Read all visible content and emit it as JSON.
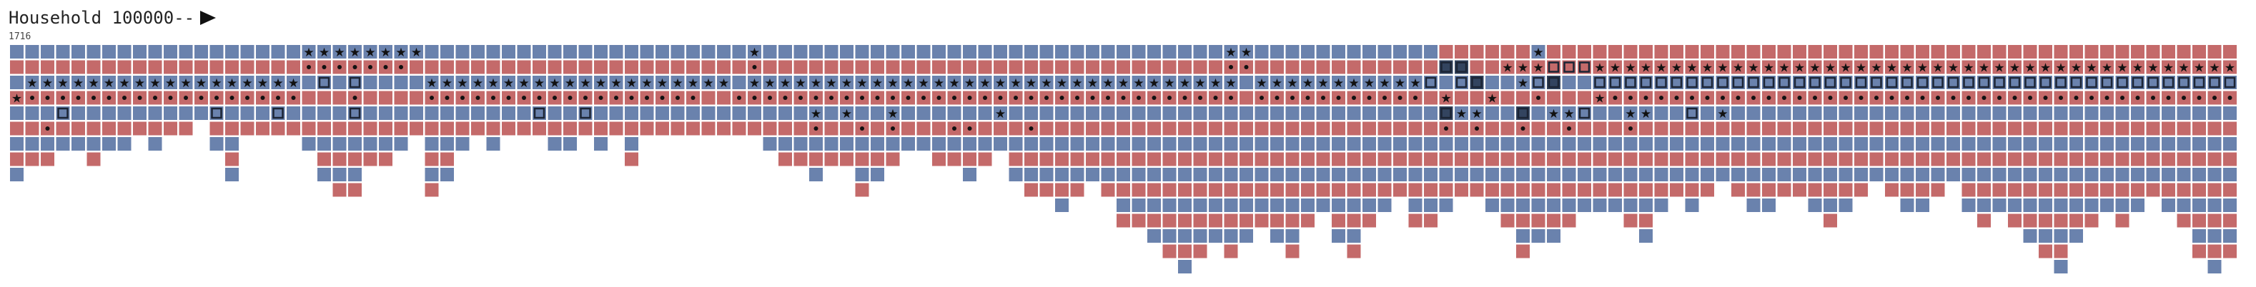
{
  "header": {
    "title": "Household 100000--",
    "year": "1716"
  },
  "palette": {
    "blue": "#6a82ad",
    "red": "#c46a6a",
    "dark": "#33445f",
    "glyph": "#111111"
  },
  "icons": {
    "star": "star-icon",
    "dot": "dot-icon",
    "square": "square-icon",
    "bar": "bar-icon",
    "arrow": "right-arrow-icon"
  },
  "legend_codes": {
    "b": "blue cell",
    "r": "red cell",
    "s": "star-marked cell",
    "d": "dot-marked cell",
    "q": "boxed cell",
    "k": "dark boxed cell",
    "l": "bar-marked cell"
  },
  "grid": {
    "rows": [
      "bbbbbbbbbbbbbbbbbbbssssssssbbbbbbbbbbbbbbbbbbbbbsbbbbbbbbbbbbbbbbbbbbbbbbbbbbbbssbbbbbbbbbbbbrrrrrrsrrrrrrrrrrrrrrrrrrrrrrrrrrrrrrrrrrrrrrrrrrrrrrrrrrrrrrrrrrrrrrrrrrrrrrrrr",
      "rrrrrrrrrrrrrrrrrrrdddddddrrrrrrrrrrrrrrrrrrrrrrdrrrrrrrrrrrrrrrrrrrrrrrrrrrrrrddrrrrrrrrrrrrkkrrsssqqqsssssssssssssssssssssssssssssssssssssssssssssssssssssssssssssss",
      "bssssssssssssssssssbqbqbbbbssssssssssssssssssssbssssssssssssssssssssssssssssssssbsssssssssssqbqkbbsqkbbqqqqqqqqqqqqqqqqqqqqqqqqqqqqqqqqqqqqqqqqqqqqqqqqqqqqqqqqqqqqqqqqqqq",
      "sddddddddddddddddddrrrdrrrrddddddddddddddddddrrdddddddddddddddddddddddddddddddddrdddddddddddrsrrsrrdrrrsdddddddddddddddddddddddddddddddddddddddddddddddddddddddddddddddddd",
      "bbbqbbbbbbbbbqbbbqbbbbqbbbbbbbbbbbqbbqbbbbbbbbbbbbbbsbsbbsbbbbbbsbbbbbbbbbbbbbbbbbbbbbbbbbbbbkssbbkbssqbbssbbqbsbbbbbbbbbbbbbbbbbbbbbbbbbbbbbbbbbbbbbbbbbbbbbbbbbbbbbbbbb",
      "rrdrrrrrrrrrrrrrrrrrrrrrrrrrrrrrrrrrrrrrrrrrrrrrrrrrdrrdrdrrrddrrrdrrrrrrrrrrrrrrrrrrrrrrrrrrdrdrrdrrdrrrdrrrrrrrrrrrrrrrrrrrrrrrrrrrrrrrrrrrrrrrrrrrrrrrrrrrrrrrrrrrrrr",
      "bbbbbbbbbbbbbbbbbbbbbbbbbbbbbbbbbbbbbbbbbbbbbbbbbbbbbbbbbbbbbbbbbbbbbbbbbbbbbbbbbbbbbbbbbbbbbbbbbbbbbbbbbbbbbbbbbbbbbbbbbbbbbbbbbbbbbbbbbbbbbbbbbbbbbbbbbbbbbbbbbbbbbbbbbb",
      "rrrrrrrrrrrrrrrrrrrrrrrrrrrrrrrrrrrrrrrrrrrrrrrrrrrrrrrrrrrrrrrrrrrrrrrrrrrrrrrrrrrrrrrrrrrrrrrrrrrrrrrrrrrrrrrrrrrrrrrrrrrrrrrrrrrrrrrrrrrrrrrrrrrrrrrrrrrrrrrrrrrrrrrr",
      "bbbbbbbbbbbbbbbbbbbbbbbbbbbbbbbbbbbbbbbbbbbbbbbbbbbbbbbbbbbbbbbbbbbbbbbbbbbbbbbbbbbbbbbbbbbbbbbbbbbbbbbbbbbbbbbbbbbbbbbbbbbbbbbbbbbbbbbbbbbbbbbbbbbbbbbbbbbbbbbbbbbbbbbbbb",
      "rrrrrrrrrrrrrrrrrrrrrrrrrrrrrrrrrrrrrrrrrrrrrrrrrrrrrrrrrrrrrrrrrrrrrrrrrrrrrrrrrrrrrrrrrrrrrrrrrrrrrrrrrrrrrrrrrrrrrrrrrrrrrrrrrrrrrrrrrrrrrrrrrrrrrrrrrrrrrrrrrrrrrrrr",
      "bbbbbbbbbbbbbbbbbbbbbbbbbbbbbbbbbbbbbbbbbbbbbbbbbbbbbbbbbbbbbbbbbbbbbbbbbbbbbbbbbbbbbbbbbbbbbbbbbbbbbbbbbbbbbbbbbbbbbbbbbbbbbbbbbbbbbbbbbbbbbbbbbbbbbbbbbbbbbbbbbbbbbbbbbb",
      "rrrrrrrrrrrrrrrrrrrrrrrrrrrrrrrrrrrrrrrrrrrrrrrrrrrrrrrrrrrrrrrrrrrrrrrrrrrrrrrrrrrrrrrrrrrrrrrrrrrrrrrrrrrrrrrrrrrrrrrrrrrrrrrrrrrrrrrrrrrrrrrrrrrrrrrrrrrrrrrrrrrrrrrrr",
      "bbbbbbbbbbbbbbbbbbbbbbbbbbbbbbbbbbbbbbbbbbbbbbbbbbbbbbbbbbbbbbbbbbbbbbbbbbbbbbbbbbbbbbbbbbbbbbbbbbbbbbbbbbbbbbbbbbbbbbbbbbbbbbbbbbbbbbbbbbbbbbbbbbbbbbbbbbbbbbbbbbbbbbbbbb",
      "rrrrrrrrrrrrrrrrrrrrrrrrrrrrrrrrrrrrrrrrrrrrrrrrrrrrrrrrrrrrrrrrrrrrrrrrrrrrrrrrrrrrrrrrrrrrrrrrrrrrrrrrrrrrrrrrrrrrrrrrrrrrrrrrrrrrrrrrrrrrrrrrrrrrrrrrrrrrrrrrrrrrrrrr",
      "bbbbbbbbbbbbbbbbbbbbbbbbbbbbbbbbbbbbbbbbbbbbbbbbbbbbbbbbbbbbbbbbbbbbbbbbbbbbbbbbbbbbbbbbbbbbbbbbbbbbbbbbbbbbbbbbbbbbbbbbbbbbbbbbbbbbbbbbbbbbbbbbbbbbbbbbbbbbbbbbbbbbbbbbbb",
      "rrrrrrrrrrrrrrrrrrrrrrrrrrrrrrrrrrrrrrrrrrrrrrrrrrrrrrrrrrrrrrrrrrrrrrrrrrrrrrrrrrrrrrrrrrrrrrrrrrrrrrrrrrrrrrrrrrrrrrrrrrrrrrrrrrrrrrrrrrrrrrrrrrrrrrrrrrrrrrrrrrrrrrrr"
    ],
    "column_heights": [
      9,
      8,
      8,
      7,
      7,
      8,
      7,
      7,
      6,
      7,
      6,
      6,
      5,
      7,
      9,
      6,
      6,
      6,
      6,
      7,
      9,
      10,
      10,
      8,
      8,
      7,
      6,
      10,
      9,
      7,
      6,
      7,
      6,
      6,
      6,
      7,
      7,
      6,
      7,
      6,
      8,
      6,
      6,
      6,
      6,
      6,
      6,
      6,
      6,
      7,
      8,
      8,
      9,
      8,
      8,
      10,
      9,
      8,
      7,
      7,
      8,
      8,
      9,
      8,
      7,
      9,
      10,
      10,
      11,
      10,
      9,
      10,
      12,
      12,
      13,
      14,
      15,
      14,
      13,
      14,
      13,
      12,
      13,
      14,
      12,
      11,
      13,
      14,
      12,
      11,
      10,
      12,
      12,
      11,
      10,
      10,
      11,
      12,
      14,
      13,
      13,
      12,
      11,
      11,
      11,
      12,
      13,
      11,
      10,
      11,
      10,
      9,
      10,
      11,
      11,
      10,
      10,
      11,
      12,
      11,
      10,
      9,
      10,
      11,
      11,
      10,
      9,
      11,
      12,
      11,
      12,
      13,
      14,
      15,
      13,
      12,
      11,
      12,
      11,
      10,
      11,
      12,
      14,
      15,
      14,
      13,
      14,
      15,
      16,
      14,
      13,
      14,
      13,
      12,
      12,
      11,
      10,
      9,
      10,
      9,
      8,
      7,
      7,
      8,
      7,
      7,
      6,
      6
    ]
  }
}
